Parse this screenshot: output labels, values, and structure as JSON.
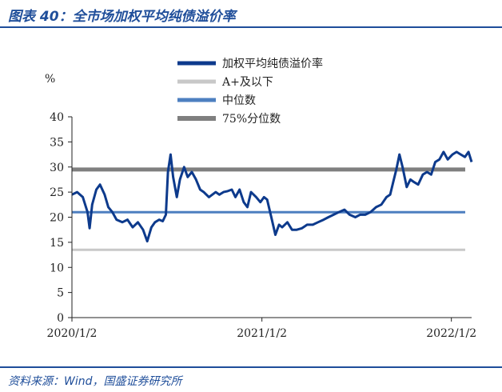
{
  "header": {
    "title": "图表 40：全市场加权平均纯债溢价率"
  },
  "footer": {
    "source": "资料来源：Wind，国盛证券研究所"
  },
  "colors": {
    "accent": "#1f4e9a",
    "series_main": "#0d3a8c",
    "below_a": "#c8c8c8",
    "median": "#4d7fc0",
    "p75": "#7f7f7f"
  },
  "chart_data": {
    "type": "line",
    "unit_label": "%",
    "ylim": [
      0,
      40
    ],
    "yticks": [
      "0",
      "5",
      "10",
      "15",
      "20",
      "25",
      "30",
      "35",
      "40"
    ],
    "xticks": [
      "2020/1/2",
      "2021/1/2",
      "2022/1/2"
    ],
    "xlim": [
      "2020-01-02",
      "2022-02-10"
    ],
    "legend_position": "top-center",
    "grid": false,
    "series": [
      {
        "name": "加权平均纯债溢价率",
        "x": [
          "2020-01-02",
          "2020-01-12",
          "2020-01-23",
          "2020-02-01",
          "2020-02-05",
          "2020-02-10",
          "2020-02-18",
          "2020-02-25",
          "2020-03-05",
          "2020-03-12",
          "2020-03-20",
          "2020-03-28",
          "2020-04-08",
          "2020-04-18",
          "2020-04-28",
          "2020-05-08",
          "2020-05-18",
          "2020-05-26",
          "2020-06-03",
          "2020-06-10",
          "2020-06-18",
          "2020-06-25",
          "2020-07-01",
          "2020-07-05",
          "2020-07-10",
          "2020-07-15",
          "2020-07-22",
          "2020-07-28",
          "2020-08-05",
          "2020-08-12",
          "2020-08-20",
          "2020-08-28",
          "2020-09-05",
          "2020-09-12",
          "2020-09-22",
          "2020-10-05",
          "2020-10-12",
          "2020-10-20",
          "2020-10-28",
          "2020-11-05",
          "2020-11-12",
          "2020-11-20",
          "2020-11-28",
          "2020-12-05",
          "2020-12-12",
          "2020-12-22",
          "2020-12-30",
          "2021-01-06",
          "2021-01-12",
          "2021-01-20",
          "2021-01-28",
          "2021-02-04",
          "2021-02-10",
          "2021-02-20",
          "2021-03-01",
          "2021-03-10",
          "2021-03-20",
          "2021-03-30",
          "2021-04-10",
          "2021-04-20",
          "2021-05-01",
          "2021-05-10",
          "2021-05-20",
          "2021-05-30",
          "2021-06-10",
          "2021-06-20",
          "2021-07-01",
          "2021-07-10",
          "2021-07-20",
          "2021-07-30",
          "2021-08-10",
          "2021-08-20",
          "2021-08-30",
          "2021-09-06",
          "2021-09-12",
          "2021-09-18",
          "2021-09-24",
          "2021-09-30",
          "2021-10-08",
          "2021-10-15",
          "2021-10-22",
          "2021-10-30",
          "2021-11-08",
          "2021-11-16",
          "2021-11-24",
          "2021-12-02",
          "2021-12-10",
          "2021-12-18",
          "2021-12-26",
          "2022-01-04",
          "2022-01-12",
          "2022-01-20",
          "2022-01-28",
          "2022-02-04",
          "2022-02-10"
        ],
        "values": [
          24.5,
          25.0,
          24.0,
          21.0,
          17.8,
          22.5,
          25.5,
          26.5,
          24.5,
          22.0,
          21.0,
          19.5,
          19.0,
          19.5,
          18.0,
          19.0,
          17.5,
          15.2,
          18.0,
          19.0,
          19.5,
          19.2,
          20.5,
          29.0,
          32.5,
          28.0,
          24.0,
          27.5,
          30.0,
          28.0,
          29.0,
          27.5,
          25.5,
          25.0,
          24.0,
          25.0,
          24.5,
          25.0,
          25.2,
          25.5,
          24.0,
          25.5,
          23.0,
          22.0,
          25.0,
          24.0,
          23.0,
          24.0,
          23.5,
          20.0,
          16.5,
          18.5,
          18.0,
          19.0,
          17.5,
          17.5,
          17.8,
          18.5,
          18.5,
          19.0,
          19.5,
          20.0,
          20.5,
          21.0,
          21.5,
          20.5,
          20.0,
          20.5,
          20.5,
          21.0,
          22.0,
          22.5,
          24.0,
          24.5,
          27.0,
          29.5,
          32.5,
          30.0,
          26.0,
          27.5,
          27.0,
          26.5,
          28.5,
          29.0,
          28.5,
          31.0,
          31.5,
          33.0,
          31.5,
          32.5,
          33.0,
          32.5,
          32.0,
          33.0,
          31.0
        ]
      },
      {
        "name": "A+及以下",
        "value": 13.5
      },
      {
        "name": "中位数",
        "value": 21.0
      },
      {
        "name": "75%分位数",
        "value": 29.5
      }
    ]
  }
}
